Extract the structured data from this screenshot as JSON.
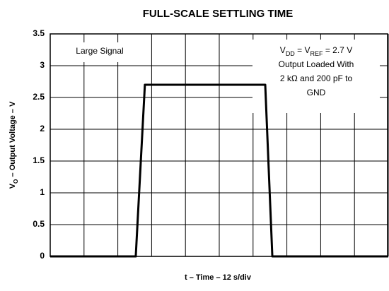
{
  "chart_data": {
    "type": "line",
    "title": "FULL-SCALE SETTLING TIME",
    "y_label": [
      {
        "text": "V"
      },
      {
        "text": "O",
        "sub": true
      },
      {
        "text": " – Output Voltage – V"
      }
    ],
    "x_label": "t – Time – 12  s/div",
    "xlim": [
      0,
      10
    ],
    "xticks": [
      0,
      1,
      2,
      3,
      4,
      5,
      6,
      7,
      8,
      9,
      10
    ],
    "ylim": [
      0,
      3.5
    ],
    "yticks": [
      0,
      0.5,
      1,
      1.5,
      2,
      2.5,
      3,
      3.5
    ],
    "grid": true,
    "x": [
      0,
      2.53,
      2.8,
      6.36,
      6.57,
      10
    ],
    "series": [
      {
        "color": "#000000",
        "values": [
          0,
          0,
          2.7,
          2.7,
          0,
          0
        ]
      }
    ],
    "annotations": [
      {
        "lines": [
          [
            {
              "text": "Large Signal"
            }
          ]
        ]
      },
      {
        "lines": [
          [
            {
              "text": "V"
            },
            {
              "text": "DD",
              "sub": true
            },
            {
              "text": " = V"
            },
            {
              "text": "REF",
              "sub": true
            },
            {
              "text": " = 2.7 V"
            }
          ],
          [
            {
              "text": "Output Loaded With"
            }
          ],
          [
            {
              "text": "2 kΩ and 200 pF to"
            }
          ],
          [
            {
              "text": "GND"
            }
          ]
        ]
      }
    ]
  }
}
